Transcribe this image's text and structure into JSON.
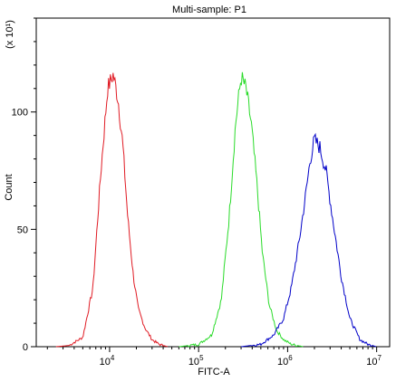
{
  "chart_data": {
    "type": "line",
    "title": "Multi-sample: P1",
    "xlabel": "FITC-A",
    "ylabel": "Count",
    "y_multiplier": "(x 10¹)",
    "x_scale": "log",
    "xlim": [
      1500,
      14000000
    ],
    "ylim": [
      0,
      140
    ],
    "grid": false,
    "x_ticks": [
      {
        "value": 10000,
        "base": "10",
        "exp": "4"
      },
      {
        "value": 100000,
        "base": "10",
        "exp": "5"
      },
      {
        "value": 1000000,
        "base": "10",
        "exp": "6"
      },
      {
        "value": 10000000,
        "base": "10",
        "exp": "7"
      }
    ],
    "y_ticks": [
      0,
      50,
      100
    ],
    "series": [
      {
        "color": "#e01b24",
        "x": [
          2500,
          3500,
          5000,
          6500,
          8000,
          9500,
          11000,
          12500,
          14000,
          16000,
          18500,
          21000,
          25000,
          30000,
          36000,
          45000
        ],
        "y": [
          0,
          0.5,
          4,
          25,
          75,
          110,
          116,
          105,
          87,
          55,
          30,
          16,
          8,
          3,
          1,
          0
        ]
      },
      {
        "color": "#2adb2a",
        "x": [
          60000,
          100000,
          140000,
          180000,
          220000,
          260000,
          300000,
          340000,
          390000,
          450000,
          520000,
          620000,
          750000,
          900000,
          1100000,
          1500000
        ],
        "y": [
          0,
          1,
          5,
          20,
          55,
          95,
          115,
          110,
          95,
          70,
          40,
          18,
          7,
          3,
          1,
          0
        ]
      },
      {
        "color": "#0000c8",
        "x": [
          300000,
          500000,
          700000,
          900000,
          1100000,
          1350000,
          1600000,
          1800000,
          2000000,
          2300000,
          2700000,
          3200000,
          4000000,
          5000000,
          6500000,
          8000000,
          10000000
        ],
        "y": [
          0,
          1,
          5,
          12,
          25,
          45,
          65,
          80,
          88,
          85,
          75,
          55,
          30,
          12,
          3,
          1,
          0
        ]
      }
    ]
  }
}
